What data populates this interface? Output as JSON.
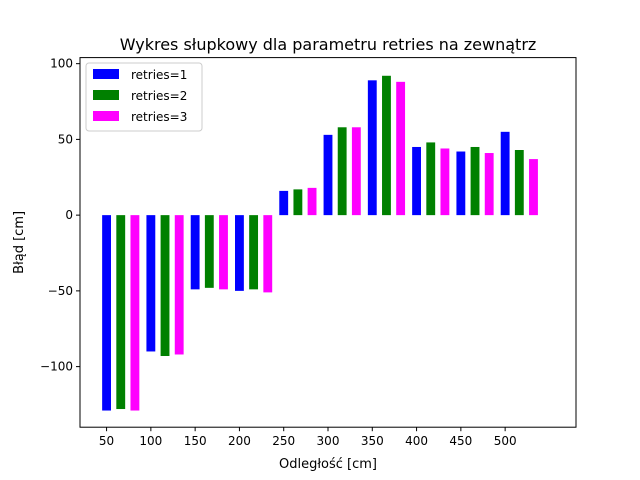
{
  "chart_data": {
    "type": "bar",
    "title": "Wykres słupkowy dla parametru retries na zewnątrz",
    "xlabel": "Odległość [cm]",
    "ylabel": "Błąd [cm]",
    "categories": [
      50,
      100,
      150,
      200,
      250,
      300,
      350,
      400,
      450,
      500
    ],
    "xticks": [
      "50",
      "100",
      "150",
      "200",
      "250",
      "300",
      "350",
      "400",
      "450",
      "500"
    ],
    "yticks": [
      100,
      50,
      0,
      -50,
      -100
    ],
    "ytick_labels": [
      "100",
      "50",
      "0",
      "−50",
      "−100"
    ],
    "xlim": [
      20,
      580
    ],
    "ylim": [
      -140,
      104
    ],
    "grid": false,
    "legend_position": "top-left",
    "series": [
      {
        "name": "retries=1",
        "color": "#0000ff",
        "values": [
          -129,
          -90,
          -49,
          -50,
          16,
          53,
          89,
          45,
          42,
          55
        ]
      },
      {
        "name": "retries=2",
        "color": "#008000",
        "values": [
          -128,
          -93,
          -48,
          -49,
          17,
          58,
          92,
          48,
          45,
          43
        ]
      },
      {
        "name": "retries=3",
        "color": "#ff00ff",
        "values": [
          -129,
          -92,
          -49,
          -51,
          18,
          58,
          88,
          44,
          41,
          37
        ]
      }
    ]
  }
}
